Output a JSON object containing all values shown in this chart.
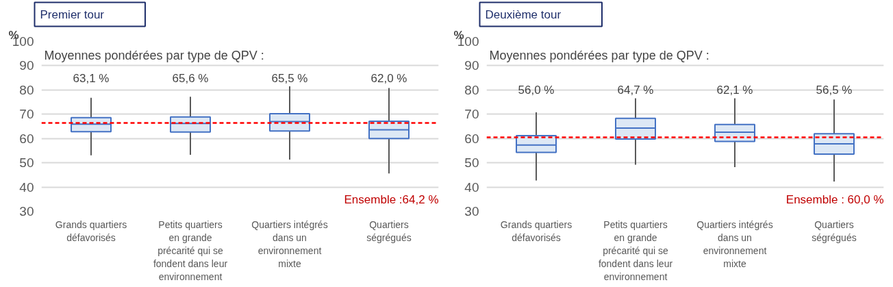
{
  "chart_data": [
    {
      "type": "box",
      "title": "Premier tour",
      "subtitle": "Moyennes pondérées par type de QPV :",
      "ylabel": "%",
      "categories": [
        "Grands quartiers défavorisés",
        "Petits quartiers en grande précarité qui se fondent dans leur environnement",
        "Quartiers intégrés dans un environnement mixte",
        "Quartiers ségrégués"
      ],
      "color": "#4472c4",
      "boxes": [
        {
          "low": 53.1,
          "q1": 62.8,
          "median": 65.9,
          "q3": 68.6,
          "high": 76.8
        },
        {
          "low": 53.3,
          "q1": 62.7,
          "median": 66.2,
          "q3": 68.9,
          "high": 77.2
        },
        {
          "low": 51.3,
          "q1": 63.1,
          "median": 67.0,
          "q3": 70.2,
          "high": 81.5
        },
        {
          "low": 45.6,
          "q1": 60.0,
          "median": 63.6,
          "q3": 67.1,
          "high": 80.8
        }
      ],
      "value_labels": [
        "63,1 %",
        "65,6 %",
        "65,5 %",
        "62,0 %"
      ],
      "ref_lines": [
        {
          "axis": "y",
          "value": 66.4,
          "color": "#ff0000",
          "line_style": "dashed"
        }
      ],
      "annotations": [
        "Ensemble :64,2 %"
      ],
      "ylim": [
        30,
        100
      ],
      "yticks": [
        30,
        40,
        50,
        60,
        70,
        80,
        90,
        100
      ],
      "grid": "y"
    },
    {
      "type": "box",
      "title": "Deuxième tour",
      "subtitle": "Moyennes pondérées par type de QPV :",
      "ylabel": "%",
      "categories": [
        "Grands quartiers défavorisés",
        "Petits quartiers en grande précarité qui se fondent dans leur environnement",
        "Quartiers intégrés dans un environnement mixte",
        "Quartiers ségrégués"
      ],
      "color": "#4472c4",
      "boxes": [
        {
          "low": 42.7,
          "q1": 54.3,
          "median": 57.3,
          "q3": 61.2,
          "high": 70.8
        },
        {
          "low": 49.2,
          "q1": 59.8,
          "median": 64.3,
          "q3": 68.3,
          "high": 76.6
        },
        {
          "low": 48.2,
          "q1": 58.8,
          "median": 62.6,
          "q3": 65.8,
          "high": 76.6
        },
        {
          "low": 42.3,
          "q1": 53.6,
          "median": 57.8,
          "q3": 62.0,
          "high": 76.1
        }
      ],
      "value_labels": [
        "56,0 %",
        "64,7 %",
        "62,1 %",
        "56,5 %"
      ],
      "ref_lines": [
        {
          "axis": "y",
          "value": 60.5,
          "color": "#ff0000",
          "line_style": "dashed"
        }
      ],
      "annotations": [
        "Ensemble : 60,0 %"
      ],
      "ylim": [
        30,
        100
      ],
      "yticks": [
        30,
        40,
        50,
        60,
        70,
        80,
        90,
        100
      ],
      "grid": "y"
    }
  ]
}
